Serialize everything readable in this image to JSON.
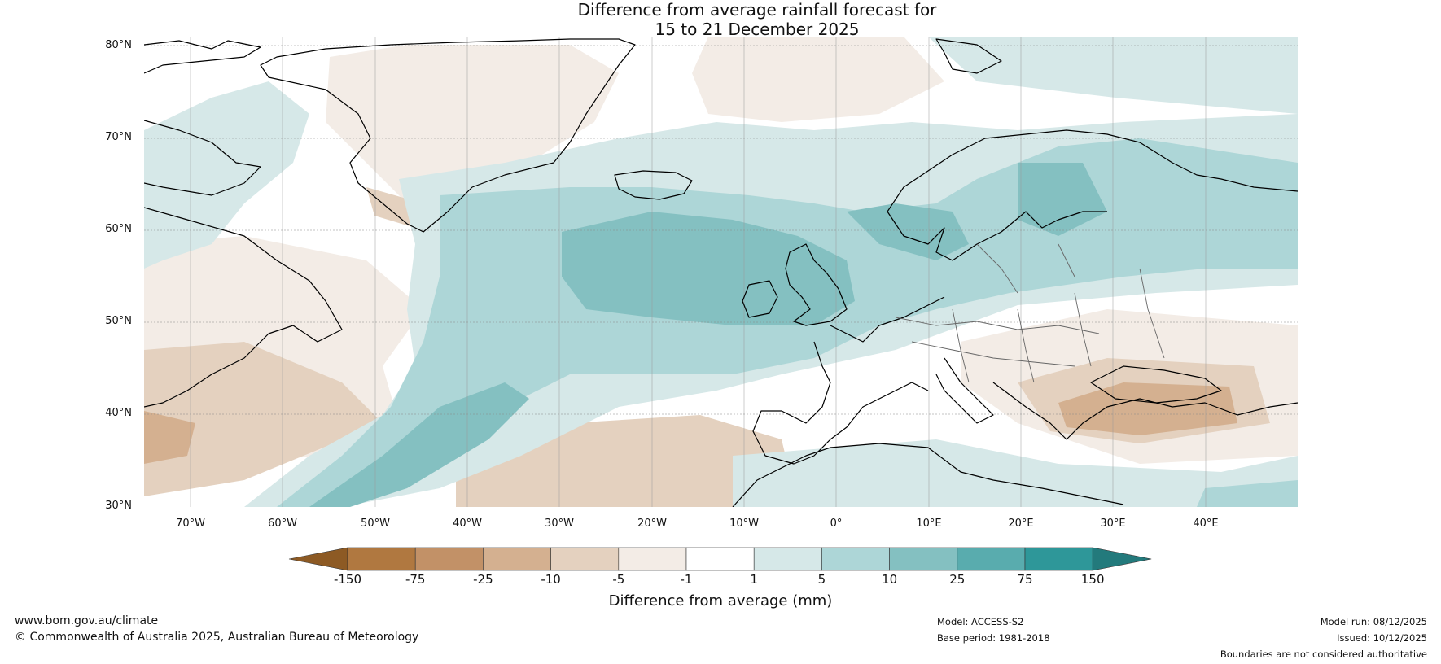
{
  "title": {
    "line1": "Difference from average rainfall forecast for",
    "line2": "15 to 21 December 2025"
  },
  "map": {
    "lat_labels": [
      "80°N",
      "70°N",
      "60°N",
      "50°N",
      "40°N",
      "30°N"
    ],
    "lon_labels": [
      "70°W",
      "60°W",
      "50°W",
      "40°W",
      "30°W",
      "20°W",
      "10°W",
      "0°",
      "10°E",
      "20°E",
      "30°E",
      "40°E"
    ],
    "extent": {
      "lon_min": -75,
      "lon_max": 50,
      "lat_min": 30,
      "lat_max": 81
    }
  },
  "colorbar": {
    "label": "Difference from average (mm)",
    "ticks": [
      "-150",
      "-75",
      "-25",
      "-10",
      "-5",
      "-1",
      "1",
      "5",
      "10",
      "25",
      "75",
      "150"
    ],
    "colors": [
      "#8d5a24",
      "#b07840",
      "#c29167",
      "#d4b090",
      "#e4d1bf",
      "#f3ece6",
      "#ffffff",
      "#d6e8e8",
      "#add6d7",
      "#84c0c1",
      "#59acae",
      "#2e9799",
      "#237a7c"
    ]
  },
  "footer": {
    "website": "www.bom.gov.au/climate",
    "copyright": "© Commonwealth of Australia 2025, Australian Bureau of Meteorology",
    "model": "Model: ACCESS-S2",
    "base_period": "Base period: 1981-2018",
    "model_run": "Model run: 08/12/2025",
    "issued": "Issued: 10/12/2025",
    "disclaimer": "Boundaries are not considered authoritative"
  }
}
